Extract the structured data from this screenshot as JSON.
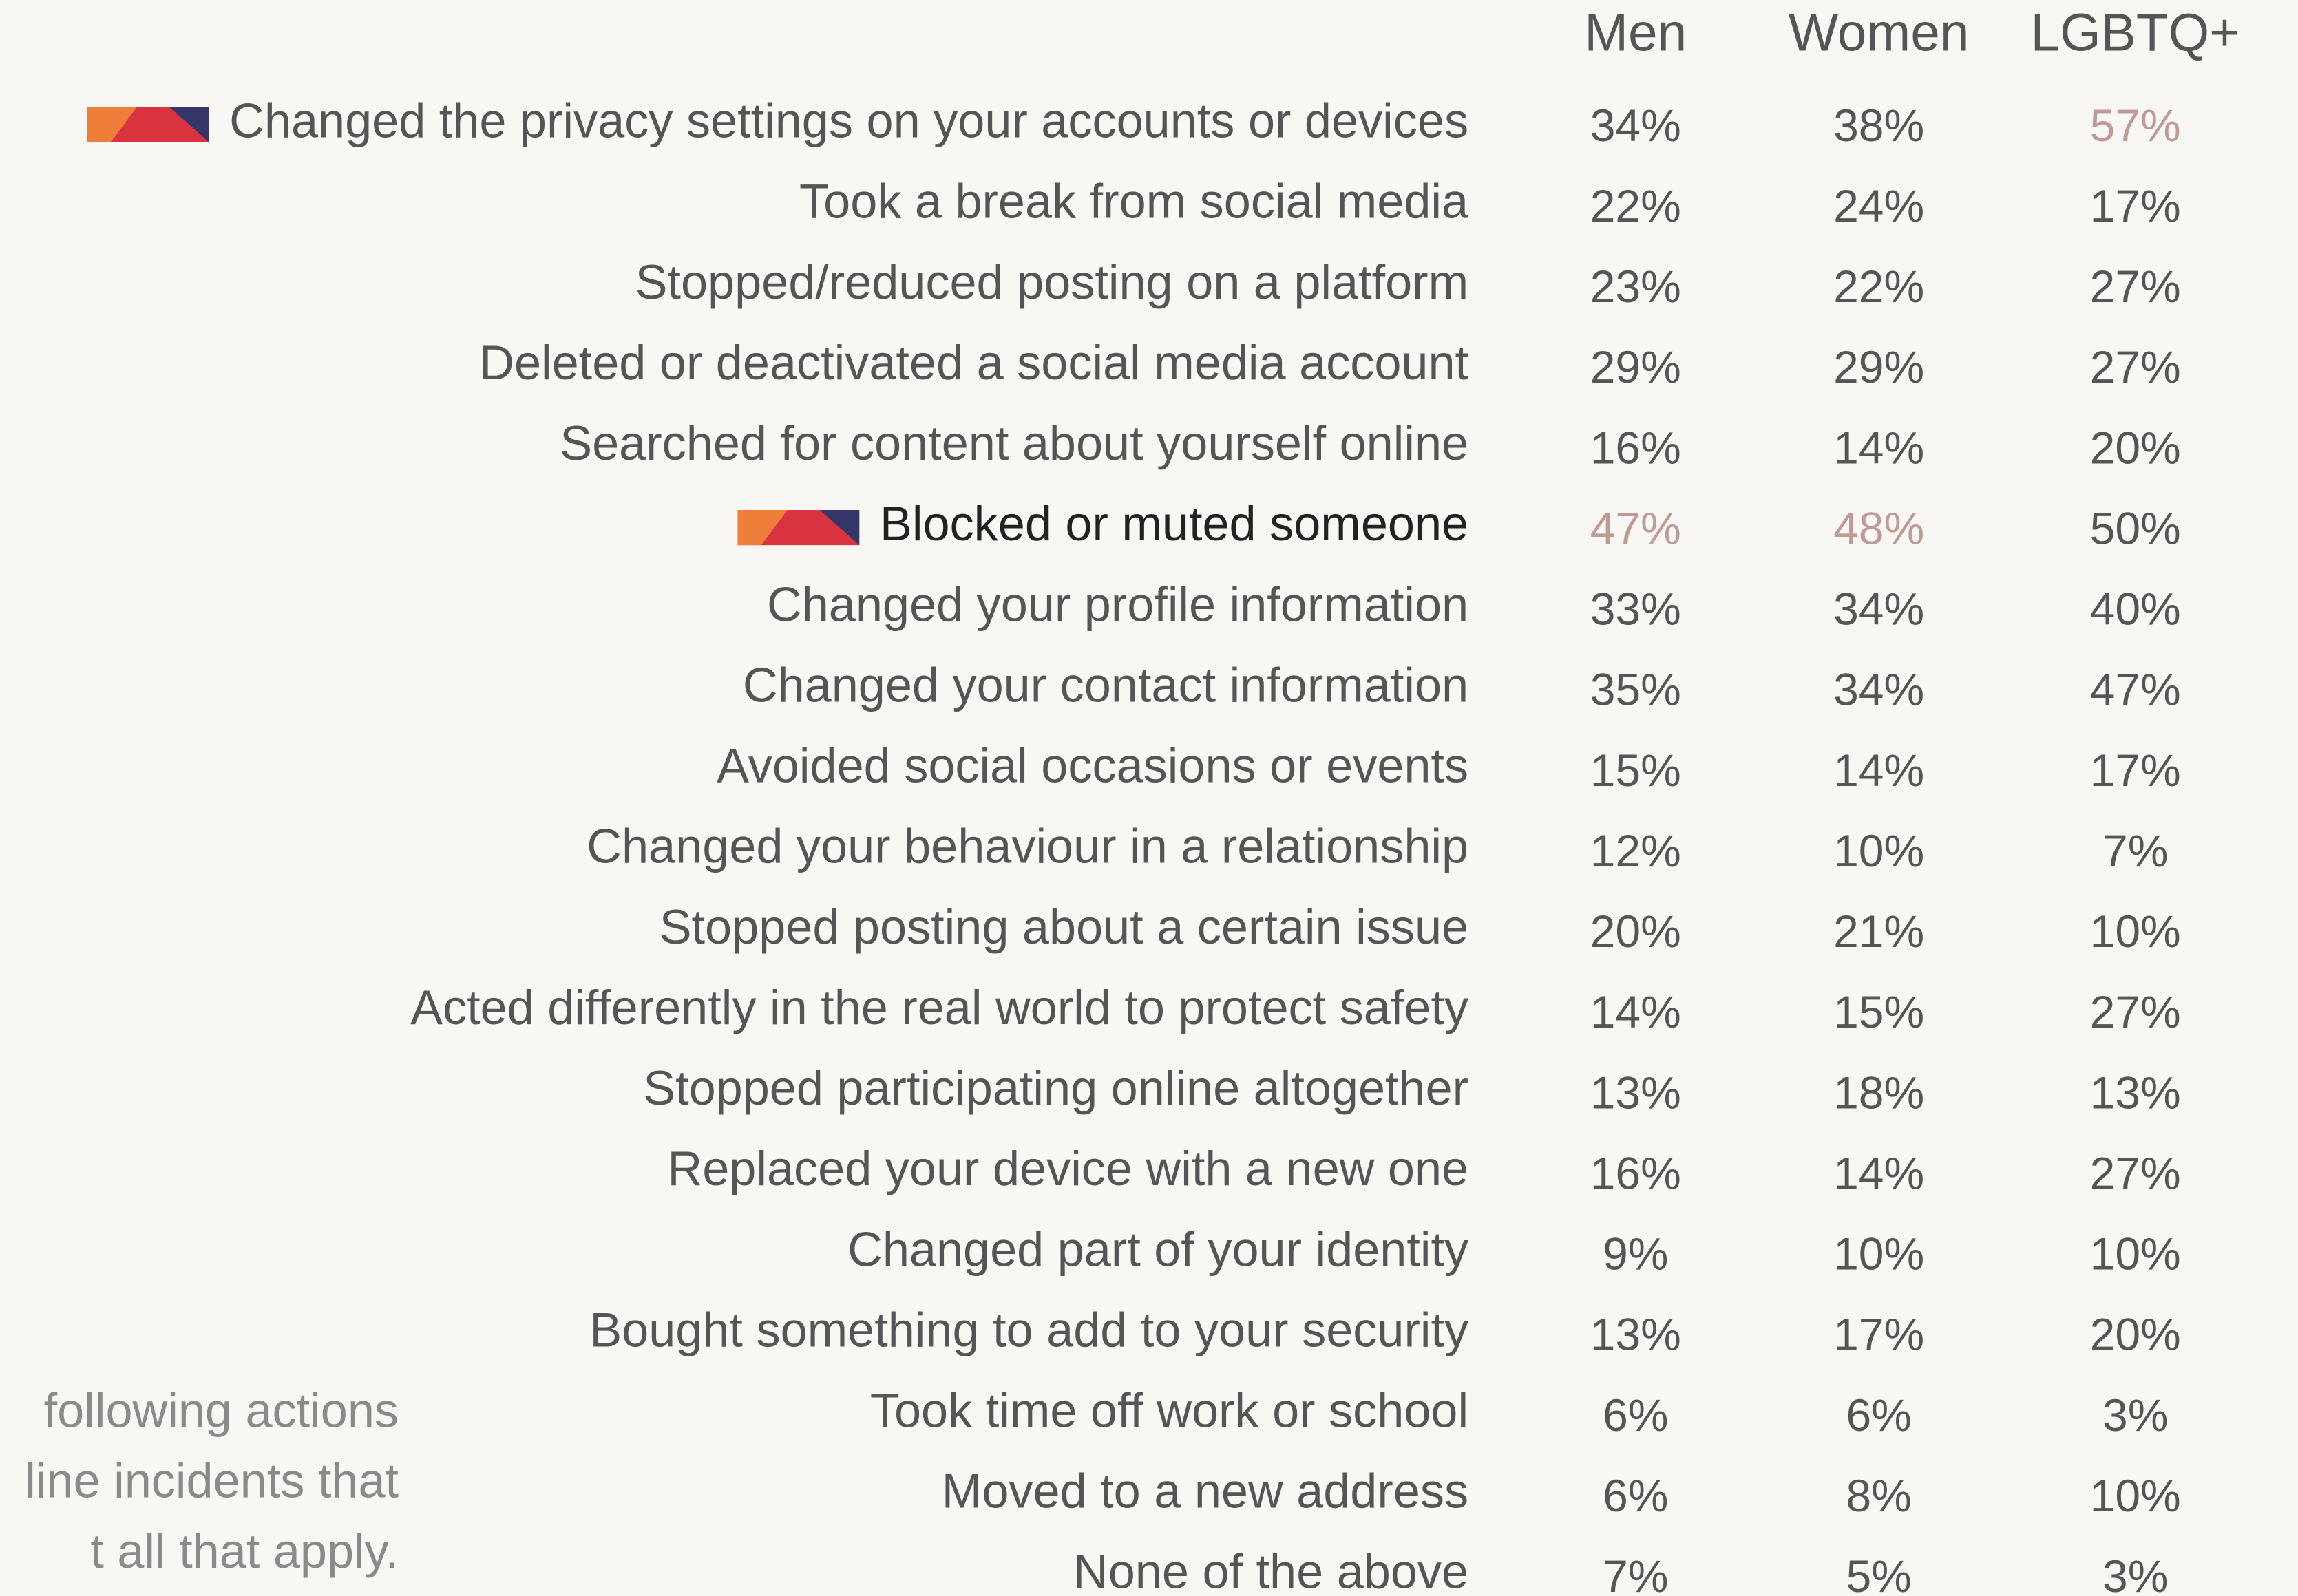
{
  "table": {
    "columns": [
      "Men",
      "Women",
      "LGBTQ+"
    ],
    "rows": [
      {
        "label": "Changed the privacy settings on your accounts or devices",
        "values": [
          "34%",
          "38%",
          "57%"
        ],
        "highlight": [
          false,
          false,
          true
        ],
        "icon": true
      },
      {
        "label": "Took a break from social media",
        "values": [
          "22%",
          "24%",
          "17%"
        ],
        "highlight": [
          false,
          false,
          false
        ],
        "icon": false
      },
      {
        "label": "Stopped/reduced posting on a platform",
        "values": [
          "23%",
          "22%",
          "27%"
        ],
        "highlight": [
          false,
          false,
          false
        ],
        "icon": false
      },
      {
        "label": "Deleted or deactivated a social media account",
        "values": [
          "29%",
          "29%",
          "27%"
        ],
        "highlight": [
          false,
          false,
          false
        ],
        "icon": false
      },
      {
        "label": "Searched for content about yourself online",
        "values": [
          "16%",
          "14%",
          "20%"
        ],
        "highlight": [
          false,
          false,
          false
        ],
        "icon": false
      },
      {
        "label": "Blocked or muted someone",
        "values": [
          "47%",
          "48%",
          "50%"
        ],
        "highlight": [
          true,
          true,
          false
        ],
        "icon": true
      },
      {
        "label": "Changed your profile information",
        "values": [
          "33%",
          "34%",
          "40%"
        ],
        "highlight": [
          false,
          false,
          false
        ],
        "icon": false
      },
      {
        "label": "Changed your contact information",
        "values": [
          "35%",
          "34%",
          "47%"
        ],
        "highlight": [
          false,
          false,
          false
        ],
        "icon": false
      },
      {
        "label": "Avoided social occasions or events",
        "values": [
          "15%",
          "14%",
          "17%"
        ],
        "highlight": [
          false,
          false,
          false
        ],
        "icon": false
      },
      {
        "label": "Changed your behaviour in a relationship",
        "values": [
          "12%",
          "10%",
          "7%"
        ],
        "highlight": [
          false,
          false,
          false
        ],
        "icon": false
      },
      {
        "label": "Stopped posting about a certain issue",
        "values": [
          "20%",
          "21%",
          "10%"
        ],
        "highlight": [
          false,
          false,
          false
        ],
        "icon": false
      },
      {
        "label": "Acted differently in the real world to protect safety",
        "values": [
          "14%",
          "15%",
          "27%"
        ],
        "highlight": [
          false,
          false,
          false
        ],
        "icon": false
      },
      {
        "label": "Stopped participating online altogether",
        "values": [
          "13%",
          "18%",
          "13%"
        ],
        "highlight": [
          false,
          false,
          false
        ],
        "icon": false
      },
      {
        "label": "Replaced your device with a new one",
        "values": [
          "16%",
          "14%",
          "27%"
        ],
        "highlight": [
          false,
          false,
          false
        ],
        "icon": false
      },
      {
        "label": "Changed part of your identity",
        "values": [
          "9%",
          "10%",
          "10%"
        ],
        "highlight": [
          false,
          false,
          false
        ],
        "icon": false
      },
      {
        "label": "Bought something to add to your security",
        "values": [
          "13%",
          "17%",
          "20%"
        ],
        "highlight": [
          false,
          false,
          false
        ],
        "icon": false
      },
      {
        "label": "Took time off work or school",
        "values": [
          "6%",
          "6%",
          "3%"
        ],
        "highlight": [
          false,
          false,
          false
        ],
        "icon": false
      },
      {
        "label": "Moved to a new address",
        "values": [
          "6%",
          "8%",
          "10%"
        ],
        "highlight": [
          false,
          false,
          false
        ],
        "icon": false
      },
      {
        "label": "None of the above",
        "values": [
          "7%",
          "5%",
          "3%"
        ],
        "highlight": [
          false,
          false,
          false
        ],
        "icon": false
      }
    ]
  },
  "note": {
    "lines": [
      "following actions",
      "line incidents that",
      "t all that apply."
    ]
  }
}
